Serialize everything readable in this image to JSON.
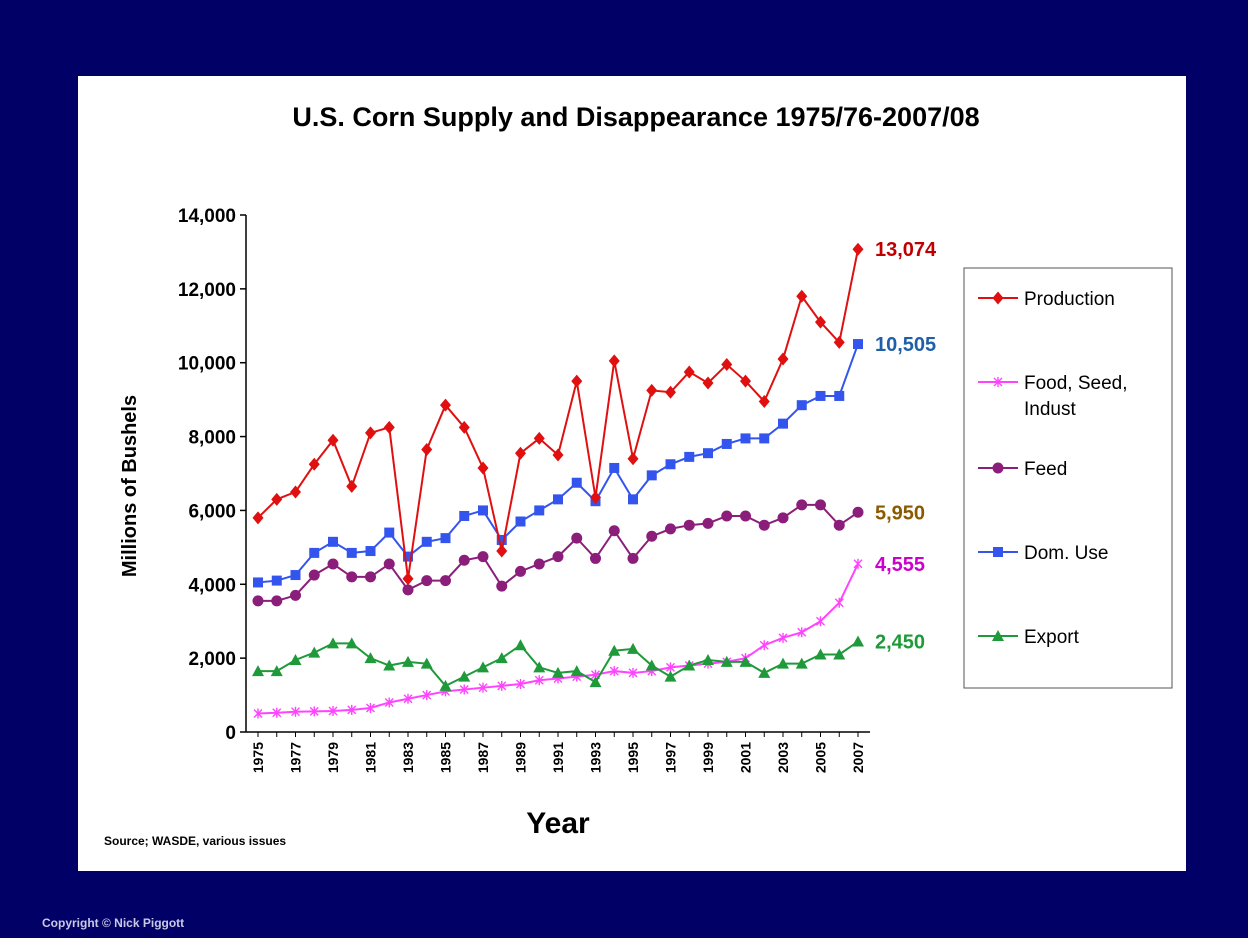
{
  "copyright": "Copyright © Nick Piggott",
  "colors": {
    "background": "#000066",
    "panel": "#ffffff"
  },
  "chart_data": {
    "type": "line",
    "title": "U.S. Corn Supply and Disappearance 1975/76-2007/08",
    "xlabel": "Year",
    "ylabel": "Millions of Bushels",
    "source": "Source; WASDE, various issues",
    "ylim": [
      0,
      14000
    ],
    "yticks": [
      0,
      2000,
      4000,
      6000,
      8000,
      10000,
      12000,
      14000
    ],
    "ytick_labels": [
      "0",
      "2,000",
      "4,000",
      "6,000",
      "8,000",
      "10,000",
      "12,000",
      "14,000"
    ],
    "x": [
      1975,
      1976,
      1977,
      1978,
      1979,
      1980,
      1981,
      1982,
      1983,
      1984,
      1985,
      1986,
      1987,
      1988,
      1989,
      1990,
      1991,
      1992,
      1993,
      1994,
      1995,
      1996,
      1997,
      1998,
      1999,
      2000,
      2001,
      2002,
      2003,
      2004,
      2005,
      2006,
      2007
    ],
    "xtick_labels": [
      "1975",
      "1977",
      "1979",
      "1981",
      "1983",
      "1985",
      "1987",
      "1989",
      "1991",
      "1993",
      "1995",
      "1997",
      "1999",
      "2001",
      "2003",
      "2005",
      "2007"
    ],
    "legend_position": "right",
    "grid": false,
    "series": [
      {
        "name": "Production",
        "color": "#e01010",
        "marker": "diamond",
        "end_label": "13,074",
        "end_label_color": "#c00000",
        "values": [
          5800,
          6300,
          6500,
          7250,
          7900,
          6650,
          8100,
          8250,
          4150,
          7650,
          8850,
          8250,
          7150,
          4900,
          7550,
          7950,
          7500,
          9500,
          6350,
          10050,
          7400,
          9250,
          9200,
          9750,
          9450,
          9950,
          9500,
          8950,
          10100,
          11800,
          11100,
          10550,
          13074
        ]
      },
      {
        "name": "Food, Seed, Indust",
        "color": "#ff44ff",
        "marker": "star",
        "end_label": "4,555",
        "end_label_color": "#cc00cc",
        "values": [
          500,
          520,
          550,
          560,
          570,
          600,
          650,
          800,
          900,
          1000,
          1100,
          1150,
          1200,
          1250,
          1300,
          1400,
          1450,
          1500,
          1550,
          1650,
          1600,
          1650,
          1750,
          1800,
          1850,
          1900,
          2000,
          2350,
          2550,
          2700,
          3000,
          3500,
          4555
        ]
      },
      {
        "name": "Feed",
        "color": "#8b1e7a",
        "marker": "circle",
        "end_label": "5,950",
        "end_label_color": "#8a5a00",
        "values": [
          3550,
          3550,
          3700,
          4250,
          4550,
          4200,
          4200,
          4550,
          3850,
          4100,
          4100,
          4650,
          4750,
          3950,
          4350,
          4550,
          4750,
          5250,
          4700,
          5450,
          4700,
          5300,
          5500,
          5600,
          5650,
          5850,
          5850,
          5600,
          5800,
          6150,
          6150,
          5600,
          5950
        ]
      },
      {
        "name": "Dom. Use",
        "color": "#3355ee",
        "marker": "square",
        "end_label": "10,505",
        "end_label_color": "#1f5fa8",
        "values": [
          4050,
          4100,
          4250,
          4850,
          5150,
          4850,
          4900,
          5400,
          4750,
          5150,
          5250,
          5850,
          6000,
          5200,
          5700,
          6000,
          6300,
          6750,
          6250,
          7150,
          6300,
          6950,
          7250,
          7450,
          7550,
          7800,
          7950,
          7950,
          8350,
          8850,
          9100,
          9100,
          10505
        ]
      },
      {
        "name": "Export",
        "color": "#1f9a3a",
        "marker": "triangle",
        "end_label": "2,450",
        "end_label_color": "#1f9a3a",
        "values": [
          1650,
          1650,
          1950,
          2150,
          2400,
          2400,
          2000,
          1800,
          1900,
          1850,
          1250,
          1500,
          1750,
          2000,
          2350,
          1750,
          1600,
          1650,
          1350,
          2200,
          2250,
          1800,
          1500,
          1800,
          1950,
          1900,
          1900,
          1600,
          1850,
          1850,
          2100,
          2100,
          2450
        ]
      }
    ]
  }
}
